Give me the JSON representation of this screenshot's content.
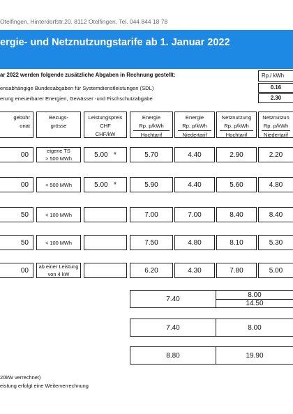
{
  "header": {
    "address": "Otelfingen, Hinterdorfstr.20, 8112 Otelfingen, Tel. 044 844 18 78",
    "title": "ergie- und Netznutzungstarife ab 1. Januar 2022"
  },
  "levies": {
    "intro": "ar 2022 werden folgende zusätzliche Abgaben in Rechnung gestellt:",
    "unit": "Rp./ kWh",
    "items": [
      {
        "label": "ensabhängige Bundesabgaben für Systemdienstleistungen (SDL)",
        "value": "0.16"
      },
      {
        "label": "erung eneuerbarer Energien, Gewässer -und Fischschutzabgabe",
        "value": "2.30"
      }
    ]
  },
  "table": {
    "headers": {
      "grundgebuehr": [
        "gebühr",
        "onat"
      ],
      "bezugsgroesse": [
        "Bezugs-",
        "grösse"
      ],
      "leistungspreis": [
        "Leistungspreis",
        "CHF",
        "CHF/kW"
      ],
      "energie_ht": [
        "Energie",
        "Rp. p/kWh",
        "Hochtarif"
      ],
      "energie_nt": [
        "Energie",
        "Rp. p/kWh",
        "Niedertarif"
      ],
      "netz_ht": [
        "Netznutzung",
        "Rp. p/kWh",
        "Hochtarif"
      ],
      "netz_nt": [
        "Netznutzun",
        "Rp. p/kWh",
        "Niedertarif"
      ]
    },
    "rows": [
      {
        "fee": "00",
        "size": [
          "eigene TS",
          "> 500 MWh"
        ],
        "lp": "5.00",
        "star": "*",
        "e_ht": "5.70",
        "e_nt": "4.40",
        "n_ht": "2.90",
        "n_nt": "2.20"
      },
      {
        "fee": "00",
        "size": [
          "< 500 MWh"
        ],
        "lp": "5.00",
        "star": "*",
        "e_ht": "5.90",
        "e_nt": "4.40",
        "n_ht": "5.60",
        "n_nt": "4.80"
      },
      {
        "fee": "50",
        "size": [
          "< 100 MWh"
        ],
        "lp": "",
        "star": "",
        "e_ht": "7.00",
        "e_nt": "7.00",
        "n_ht": "8.40",
        "n_nt": "8.40"
      },
      {
        "fee": "50",
        "size": [
          "< 100 MWh"
        ],
        "lp": "",
        "star": "",
        "e_ht": "7.50",
        "e_nt": "4.80",
        "n_ht": "8.10",
        "n_nt": "5.30"
      },
      {
        "fee": "00",
        "size": [
          "ab einer Leistung",
          "von 4 kW"
        ],
        "lp": "",
        "star": "",
        "e_ht": "6.20",
        "e_nt": "4.30",
        "n_ht": "7.80",
        "n_nt": "5.00"
      }
    ]
  },
  "flat_tariffs": [
    {
      "a": "7.40",
      "b_top": "8.00",
      "b_bottom": "14.50"
    },
    {
      "a": "7.40",
      "b": "8.00"
    },
    {
      "a": "8.80",
      "b": "19.90"
    }
  ],
  "footnotes": [
    "20kW verrechnet)",
    "eistung erfolgt eine Weiterverrechnung"
  ]
}
